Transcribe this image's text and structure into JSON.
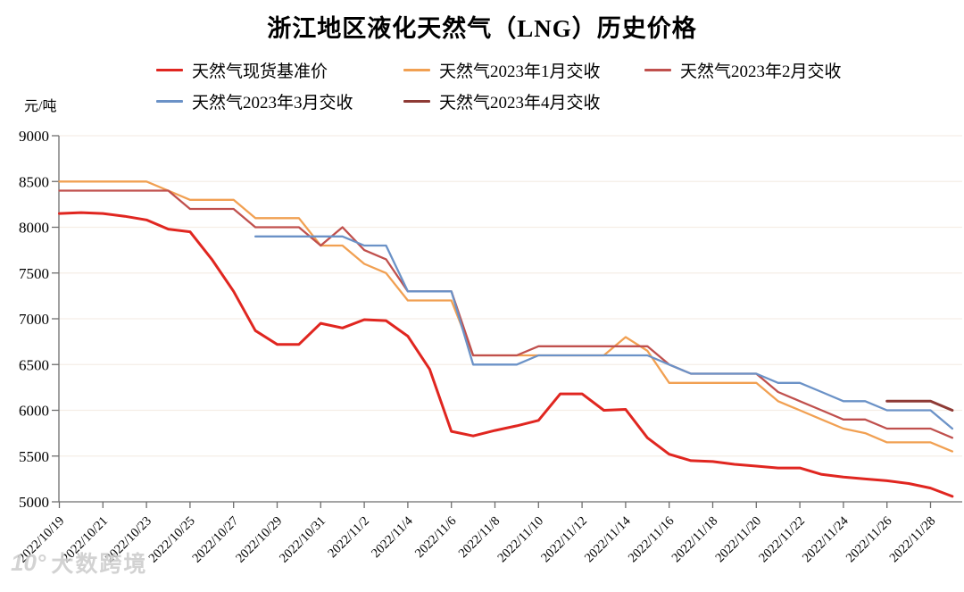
{
  "title": "浙江地区液化天然气（LNG）历史价格",
  "y_axis": {
    "unit": "元/吨",
    "min": 5000,
    "max": 9000,
    "step": 500
  },
  "x_axis": {
    "label_every_n_days": 2,
    "first_label": "2022/10/19",
    "last_label": "2022/11/28"
  },
  "watermark": {
    "logo": "10°",
    "text": "大数跨境"
  },
  "legend": {
    "items": [
      {
        "label": "天然气现货基准价",
        "color": "#e02620"
      },
      {
        "label": "天然气2023年1月交收",
        "color": "#f1a052"
      },
      {
        "label": "天然气2023年2月交收",
        "color": "#c0504d"
      },
      {
        "label": "天然气2023年3月交收",
        "color": "#6b92c7"
      },
      {
        "label": "天然气2023年4月交收",
        "color": "#8e3a35"
      }
    ]
  },
  "chart_data": {
    "type": "line",
    "title": "浙江地区液化天然气（LNG）历史价格",
    "ylabel": "元/吨",
    "ylim": [
      5000,
      9000
    ],
    "y_step": 500,
    "grid": "horizontal-light",
    "grid_color": "#f5eee6",
    "axis_color": "#6e6e6e",
    "legend_position": "top",
    "x": [
      "2022/10/19",
      "2022/10/20",
      "2022/10/21",
      "2022/10/22",
      "2022/10/23",
      "2022/10/24",
      "2022/10/25",
      "2022/10/26",
      "2022/10/27",
      "2022/10/28",
      "2022/10/29",
      "2022/10/30",
      "2022/10/31",
      "2022/11/1",
      "2022/11/2",
      "2022/11/3",
      "2022/11/4",
      "2022/11/5",
      "2022/11/6",
      "2022/11/7",
      "2022/11/8",
      "2022/11/9",
      "2022/11/10",
      "2022/11/11",
      "2022/11/12",
      "2022/11/13",
      "2022/11/14",
      "2022/11/15",
      "2022/11/16",
      "2022/11/17",
      "2022/11/18",
      "2022/11/19",
      "2022/11/20",
      "2022/11/21",
      "2022/11/22",
      "2022/11/23",
      "2022/11/24",
      "2022/11/25",
      "2022/11/26",
      "2022/11/27",
      "2022/11/28",
      "2022/11/29"
    ],
    "series": [
      {
        "name": "天然气2023年1月交收",
        "color": "#f1a052",
        "stroke_width": 2.3,
        "values": [
          8500,
          8500,
          8500,
          8500,
          8500,
          8400,
          8300,
          8300,
          8300,
          8100,
          8100,
          8100,
          7800,
          7800,
          7600,
          7500,
          7200,
          7200,
          7200,
          6600,
          6600,
          6600,
          6600,
          6600,
          6600,
          6600,
          6800,
          6650,
          6300,
          6300,
          6300,
          6300,
          6300,
          6100,
          6000,
          5900,
          5800,
          5750,
          5650,
          5650,
          5650,
          5550
        ]
      },
      {
        "name": "天然气2023年2月交收",
        "color": "#c0504d",
        "stroke_width": 2.3,
        "values": [
          8400,
          8400,
          8400,
          8400,
          8400,
          8400,
          8200,
          8200,
          8200,
          8000,
          8000,
          8000,
          7800,
          8000,
          7750,
          7650,
          7300,
          7300,
          7300,
          6600,
          6600,
          6600,
          6700,
          6700,
          6700,
          6700,
          6700,
          6700,
          6500,
          6400,
          6400,
          6400,
          6400,
          6200,
          6100,
          6000,
          5900,
          5900,
          5800,
          5800,
          5800,
          5700
        ]
      },
      {
        "name": "天然气2023年3月交收",
        "color": "#6b92c7",
        "stroke_width": 2.3,
        "values": [
          null,
          null,
          null,
          null,
          null,
          null,
          null,
          null,
          null,
          7900,
          7900,
          7900,
          7900,
          7900,
          7800,
          7800,
          7300,
          7300,
          7300,
          6500,
          6500,
          6500,
          6600,
          6600,
          6600,
          6600,
          6600,
          6600,
          6500,
          6400,
          6400,
          6400,
          6400,
          6300,
          6300,
          6200,
          6100,
          6100,
          6000,
          6000,
          6000,
          5800
        ]
      },
      {
        "name": "天然气2023年4月交收",
        "color": "#8e3a35",
        "stroke_width": 3,
        "values": [
          null,
          null,
          null,
          null,
          null,
          null,
          null,
          null,
          null,
          null,
          null,
          null,
          null,
          null,
          null,
          null,
          null,
          null,
          null,
          null,
          null,
          null,
          null,
          null,
          null,
          null,
          null,
          null,
          null,
          null,
          null,
          null,
          null,
          null,
          null,
          null,
          null,
          null,
          6100,
          6100,
          6100,
          6000
        ]
      },
      {
        "name": "天然气现货基准价",
        "color": "#e02620",
        "stroke_width": 3,
        "values": [
          8150,
          8160,
          8150,
          8120,
          8080,
          7980,
          7950,
          7650,
          7300,
          6870,
          6720,
          6720,
          6950,
          6900,
          6990,
          6980,
          6810,
          6450,
          5770,
          5720,
          5780,
          5830,
          5890,
          6180,
          6180,
          6000,
          6010,
          5700,
          5520,
          5450,
          5440,
          5410,
          5390,
          5370,
          5370,
          5300,
          5270,
          5250,
          5230,
          5200,
          5150,
          5060
        ]
      }
    ]
  }
}
